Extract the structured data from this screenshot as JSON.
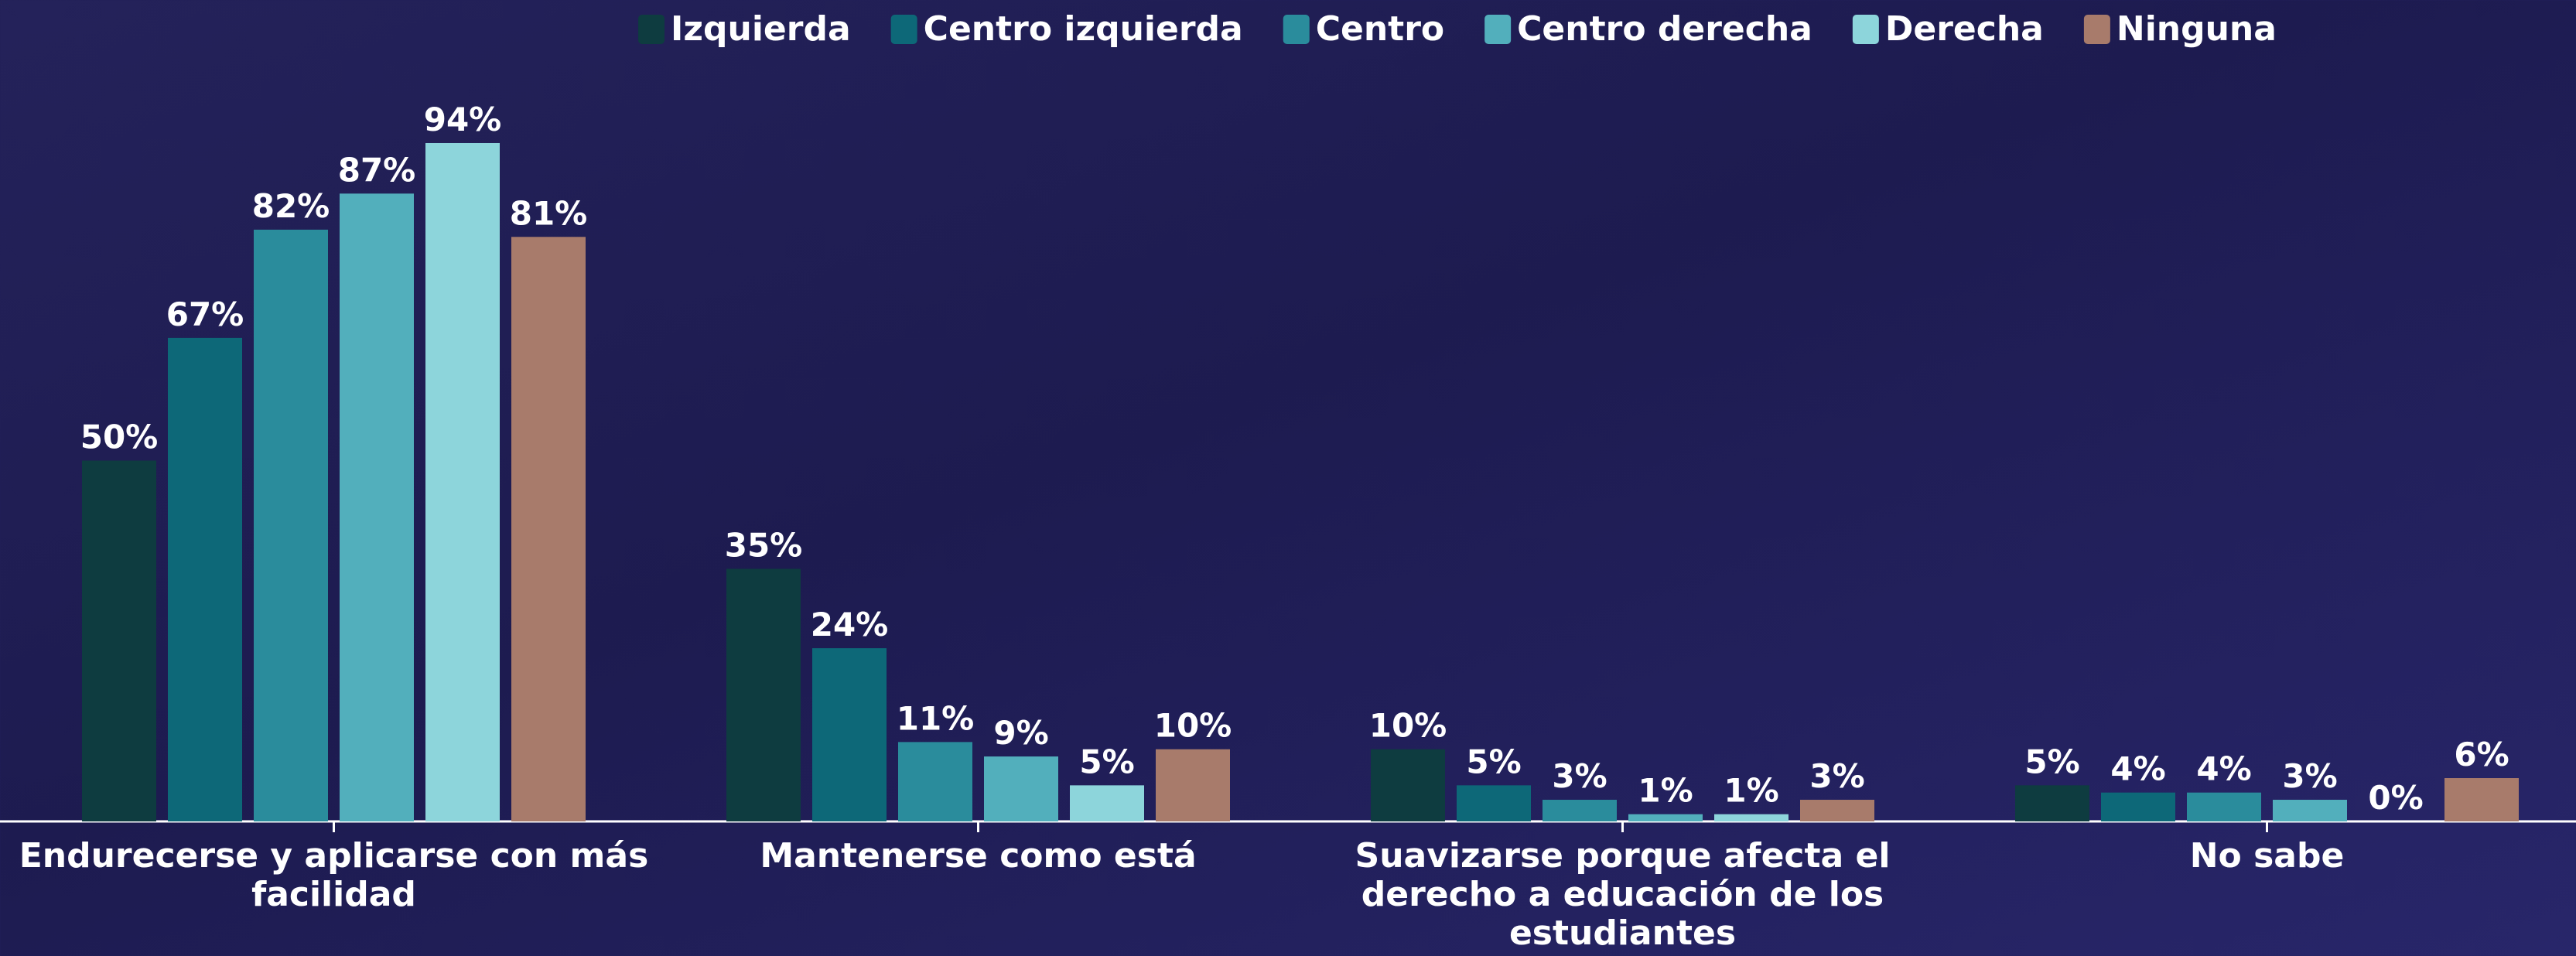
{
  "chart_data": {
    "type": "bar",
    "categories": [
      "Endurecerse y aplicarse con más facilidad",
      "Mantenerse como está",
      "Suavizarse porque afecta el derecho a educación de los estudiantes",
      "No sabe"
    ],
    "series": [
      {
        "name": "Izquierda",
        "color": "#0e3c40",
        "values": [
          50,
          35,
          10,
          5
        ],
        "value_labels": [
          "50%",
          "35%",
          "10%",
          "5%"
        ]
      },
      {
        "name": "Centro izquierda",
        "color": "#0d6878",
        "values": [
          67,
          24,
          5,
          4
        ],
        "value_labels": [
          "67%",
          "24%",
          "5%",
          "4%"
        ]
      },
      {
        "name": "Centro",
        "color": "#2a8c9c",
        "values": [
          82,
          11,
          3,
          4
        ],
        "value_labels": [
          "82%",
          "11%",
          "3%",
          "4%"
        ]
      },
      {
        "name": "Centro derecha",
        "color": "#52afbc",
        "values": [
          87,
          9,
          1,
          3
        ],
        "value_labels": [
          "87%",
          "9%",
          "1%",
          "3%"
        ]
      },
      {
        "name": "Derecha",
        "color": "#8dd5db",
        "values": [
          94,
          5,
          1,
          0
        ],
        "value_labels": [
          "94%",
          "5%",
          "1%",
          "0%"
        ]
      },
      {
        "name": "Ninguna",
        "color": "#a87b6b",
        "values": [
          81,
          10,
          3,
          6
        ],
        "value_labels": [
          "81%",
          "10%",
          "3%",
          "6%"
        ]
      }
    ]
  }
}
